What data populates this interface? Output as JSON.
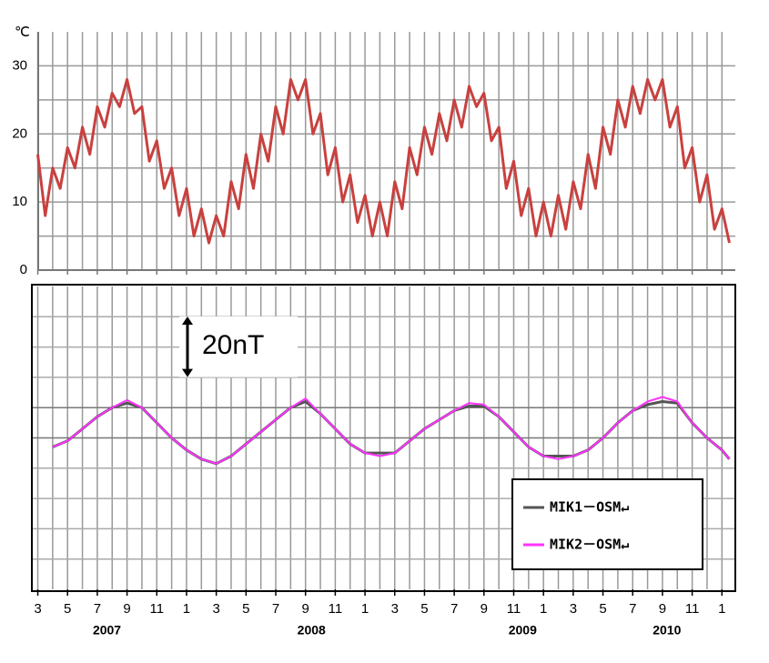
{
  "chart_data": [
    {
      "type": "line",
      "y_unit": "℃",
      "color": "#c8413f",
      "xlim": [
        2.6,
        49.9
      ],
      "ylim": [
        0,
        35
      ],
      "yticks": [
        0,
        10,
        20,
        30
      ],
      "grid": true,
      "x": [
        3,
        3.5,
        4,
        4.5,
        5,
        5.5,
        6,
        6.5,
        7,
        7.5,
        8,
        8.5,
        9,
        9.5,
        10,
        10.5,
        11,
        11.5,
        12,
        12.5,
        13,
        13.5,
        14,
        14.5,
        15,
        15.5,
        16,
        16.5,
        17,
        17.5,
        18,
        18.5,
        19,
        19.5,
        20,
        20.5,
        21,
        21.5,
        22,
        22.5,
        23,
        23.5,
        24,
        24.5,
        25,
        25.5,
        26,
        26.5,
        27,
        27.5,
        28,
        28.5,
        29,
        29.5,
        30,
        30.5,
        31,
        31.5,
        32,
        32.5,
        33,
        33.5,
        34,
        34.5,
        35,
        35.5,
        36,
        36.5,
        37,
        37.5,
        38,
        38.5,
        39,
        39.5,
        40,
        40.5,
        41,
        41.5,
        42,
        42.5,
        43,
        43.5,
        44,
        44.5,
        45,
        45.5,
        46,
        46.5,
        47,
        47.5,
        48,
        48.5,
        49,
        49.5
      ],
      "values": [
        17,
        8,
        15,
        12,
        18,
        15,
        21,
        17,
        24,
        21,
        26,
        24,
        28,
        23,
        24,
        16,
        19,
        12,
        15,
        8,
        12,
        5,
        9,
        4,
        8,
        5,
        13,
        9,
        17,
        12,
        20,
        16,
        24,
        20,
        28,
        25,
        28,
        20,
        23,
        14,
        18,
        10,
        14,
        7,
        11,
        5,
        10,
        5,
        13,
        9,
        18,
        14,
        21,
        17,
        23,
        19,
        25,
        21,
        27,
        24,
        26,
        19,
        21,
        12,
        16,
        8,
        12,
        5,
        10,
        5,
        11,
        6,
        13,
        9,
        17,
        12,
        21,
        17,
        25,
        21,
        27,
        23,
        28,
        25,
        28,
        21,
        24,
        15,
        18,
        10,
        14,
        6,
        9,
        4
      ]
    },
    {
      "type": "line",
      "xlim": [
        2.6,
        49.9
      ],
      "ylim": [
        0,
        100
      ],
      "legend": "lower right",
      "scale_bar": {
        "value": 20,
        "label": "20nT"
      },
      "xticks": [
        {
          "value": 3,
          "label": "3"
        },
        {
          "value": 5,
          "label": "5"
        },
        {
          "value": 7,
          "label": "7"
        },
        {
          "value": 9,
          "label": "9"
        },
        {
          "value": 11,
          "label": "11"
        },
        {
          "value": 13,
          "label": "1"
        },
        {
          "value": 15,
          "label": "3"
        },
        {
          "value": 17,
          "label": "5"
        },
        {
          "value": 19,
          "label": "7"
        },
        {
          "value": 21,
          "label": "9"
        },
        {
          "value": 23,
          "label": "11"
        },
        {
          "value": 25,
          "label": "1"
        },
        {
          "value": 27,
          "label": "3"
        },
        {
          "value": 29,
          "label": "5"
        },
        {
          "value": 31,
          "label": "7"
        },
        {
          "value": 33,
          "label": "9"
        },
        {
          "value": 35,
          "label": "11"
        },
        {
          "value": 37,
          "label": "1"
        },
        {
          "value": 39,
          "label": "3"
        },
        {
          "value": 41,
          "label": "5"
        },
        {
          "value": 43,
          "label": "7"
        },
        {
          "value": 45,
          "label": "9"
        },
        {
          "value": 47,
          "label": "11"
        },
        {
          "value": 49,
          "label": "1"
        }
      ],
      "year_labels": [
        {
          "value": 7.65,
          "label": "2007"
        },
        {
          "value": 21.4,
          "label": "2008"
        },
        {
          "value": 35.6,
          "label": "2009"
        },
        {
          "value": 45.3,
          "label": "2010"
        }
      ],
      "x": [
        4,
        5,
        6,
        7,
        8,
        9,
        10,
        11,
        12,
        13,
        14,
        15,
        16,
        17,
        18,
        19,
        20,
        21,
        22,
        23,
        24,
        25,
        26,
        27,
        28,
        29,
        30,
        31,
        32,
        33,
        34,
        35,
        36,
        37,
        38,
        39,
        40,
        41,
        42,
        43,
        44,
        45,
        46,
        47,
        48,
        49,
        49.5
      ],
      "series": [
        {
          "name": "MIK1－OSM↵",
          "color": "#555555",
          "values": [
            47,
            49,
            53,
            57,
            60,
            61.5,
            60,
            55,
            50,
            46,
            43,
            41.5,
            44,
            48,
            52,
            56,
            60,
            62,
            58,
            53,
            48,
            45,
            45,
            45,
            49,
            53,
            56,
            59,
            60.5,
            60.5,
            57,
            52,
            47,
            44,
            44,
            44,
            46,
            50,
            55,
            59,
            61,
            62,
            61.5,
            55,
            50,
            46,
            43
          ]
        },
        {
          "name": "MIK2－OSM↵",
          "color": "#ff33ff",
          "values": [
            47,
            49,
            53,
            57,
            60,
            62.5,
            60,
            55,
            50,
            46,
            43,
            41.5,
            44,
            48,
            52,
            56,
            60,
            63,
            58,
            53,
            48,
            45,
            44,
            45,
            49,
            53,
            56,
            59,
            61.5,
            61,
            57,
            52,
            47,
            44,
            43,
            44,
            46,
            50,
            55,
            59,
            62,
            63.5,
            62,
            55,
            50,
            46,
            43
          ]
        }
      ]
    }
  ]
}
